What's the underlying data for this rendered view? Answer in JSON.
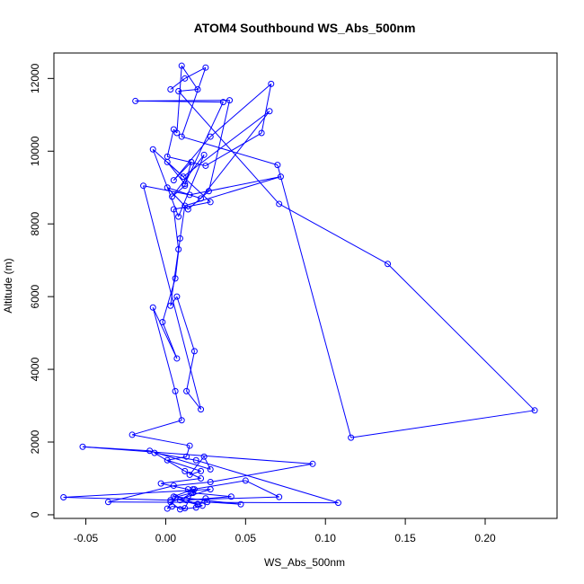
{
  "chart_data": {
    "type": "scatter",
    "title": "ATOM4 Southbound WS_Abs_500nm",
    "xlabel": "WS_Abs_500nm",
    "ylabel": "Altitude (m)",
    "xlim": [
      -0.07,
      0.245
    ],
    "ylim": [
      -100,
      12700
    ],
    "xticks": [
      -0.05,
      0.0,
      0.05,
      0.1,
      0.15,
      0.2
    ],
    "xtick_labels": [
      "-0.05",
      "0.00",
      "0.05",
      "0.10",
      "0.15",
      "0.20"
    ],
    "yticks": [
      0,
      2000,
      4000,
      6000,
      8000,
      10000,
      12000
    ],
    "ytick_labels": [
      "0",
      "2000",
      "4000",
      "6000",
      "8000",
      "10000",
      "12000"
    ],
    "grid": false,
    "legend": "none",
    "colors": {
      "series": "#0000ff",
      "frame": "#000000"
    },
    "series": [
      {
        "marker": "open-circle",
        "connected": true,
        "x": [
          0.003,
          0.012,
          0.025,
          0.01,
          0.07,
          0.116,
          0.231,
          0.139,
          0.071,
          0.008,
          0.02,
          0.01,
          0.007,
          0.005,
          0.001,
          0.025,
          0.06,
          0.066,
          0.028,
          0.005,
          0.016,
          0.012,
          0.004,
          0.024,
          0.008,
          -0.008,
          0.011,
          0.065,
          0.022,
          0.001,
          0.014,
          0.027,
          0.04,
          -0.019,
          0.036,
          0.012,
          0.001,
          0.028,
          0.005,
          0.008,
          0.003,
          0.007,
          0.018,
          0.013,
          0.022,
          -0.014,
          0.015,
          0.072,
          0.012,
          0.009,
          0.006,
          -0.002,
          0.007,
          -0.008,
          0.006,
          0.01,
          -0.021,
          0.015,
          0.013,
          0.001,
          0.022,
          0.015,
          0.024,
          0.028,
          -0.01,
          -0.052,
          0.092,
          0.028,
          0.005,
          -0.036,
          0.108,
          0.019,
          -0.007,
          0.012,
          0.022,
          -0.003,
          0.014,
          0.017,
          0.041,
          0.013,
          0.02,
          0.023,
          0.019,
          0.009,
          0.003,
          0.028,
          -0.064,
          0.003,
          0.071,
          0.05,
          0.017,
          0.005,
          0.047,
          0.026,
          0.025,
          0.02,
          0.009,
          0.016,
          0.006,
          0.001,
          0.004,
          0.012,
          0.018
        ],
        "y": [
          11700,
          12000,
          12300,
          10400,
          9620,
          2120,
          2870,
          6900,
          8550,
          11650,
          11700,
          12350,
          10500,
          10600,
          9850,
          9600,
          10500,
          11850,
          10400,
          9200,
          9700,
          9050,
          8750,
          9900,
          8200,
          10050,
          9300,
          11100,
          8700,
          9000,
          8400,
          8900,
          11400,
          11380,
          11350,
          9100,
          9700,
          8600,
          8400,
          7300,
          5750,
          6000,
          4500,
          3400,
          2900,
          9050,
          8800,
          9300,
          8500,
          7600,
          6500,
          5300,
          4300,
          5700,
          3400,
          2600,
          2200,
          1900,
          1600,
          1500,
          1200,
          1100,
          1600,
          1250,
          1760,
          1870,
          1400,
          900,
          800,
          350,
          330,
          1500,
          1700,
          1200,
          1000,
          860,
          700,
          600,
          500,
          400,
          300,
          250,
          200,
          150,
          350,
          700,
          480,
          400,
          490,
          940,
          700,
          500,
          290,
          350,
          450,
          280,
          400,
          600,
          480,
          170,
          230,
          180,
          700
        ]
      }
    ]
  }
}
